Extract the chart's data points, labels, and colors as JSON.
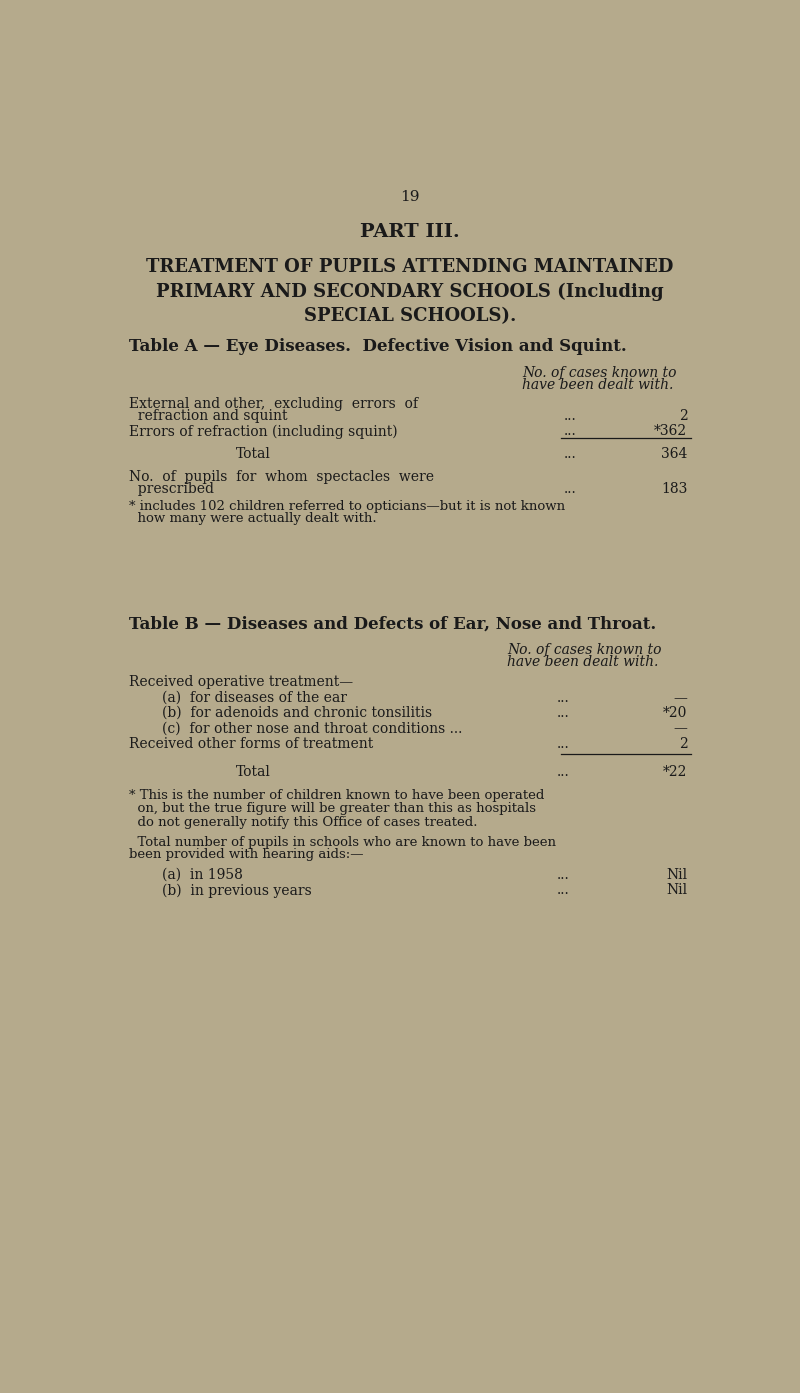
{
  "bg_color": "#b5aa8c",
  "text_color": "#1a1a1a",
  "page_number": "19",
  "part_title": "PART III.",
  "main_title_lines": [
    "TREATMENT OF PUPILS ATTENDING MAINTAINED",
    "PRIMARY AND SECONDARY SCHOOLS (Including",
    "SPECIAL SCHOOLS)."
  ],
  "table_a_title": "Table A — Eye Diseases.  Defective Vision and Squint.",
  "table_a_col_header_line1": "No. of cases known to",
  "table_a_col_header_line2": "have been dealt with.",
  "table_a_footnote_line1": "* includes 102 children referred to opticians—but it is not known",
  "table_a_footnote_line2": "  how many were actually dealt with.",
  "table_b_title": "Table B — Diseases and Defects of Ear, Nose and Throat.",
  "table_b_col_header_line1": "No. of cases known to",
  "table_b_col_header_line2": "have been dealt with.",
  "table_b_footnote_lines": [
    "* This is the number of children known to have been operated",
    "  on, but the true figure will be greater than this as hospitals",
    "  do not generally notify this Office of cases treated."
  ],
  "hearing_line1": "  Total number of pupils in schools who are known to have been",
  "hearing_line2": "been provided with hearing aids:—"
}
